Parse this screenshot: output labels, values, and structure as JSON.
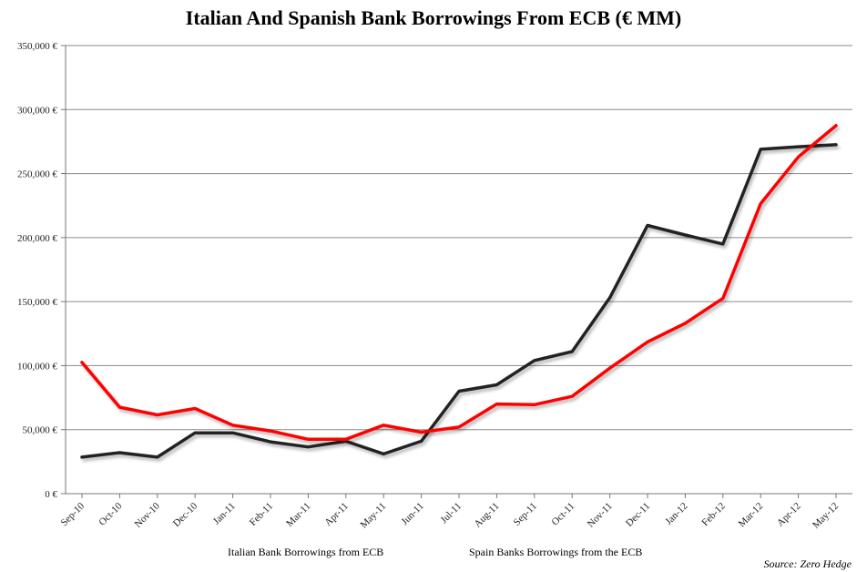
{
  "chart_data": {
    "type": "line",
    "title": "Italian And Spanish Bank Borrowings From ECB (€ MM)",
    "source": "Source: Zero Hedge",
    "ylim": [
      0,
      350000
    ],
    "yticks": [
      0,
      50000,
      100000,
      150000,
      200000,
      250000,
      300000,
      350000
    ],
    "ytick_labels": [
      "0 €",
      "50,000 €",
      "100,000 €",
      "150,000 €",
      "200,000 €",
      "250,000 €",
      "300,000 €",
      "350,000 €"
    ],
    "grid": true,
    "legend_position": "bottom",
    "categories": [
      "Sep-10",
      "Oct-10",
      "Nov-10",
      "Dec-10",
      "Jan-11",
      "Feb-11",
      "Mar-11",
      "Apr-11",
      "May-11",
      "Jun-11",
      "Jul-11",
      "Aug-11",
      "Sep-11",
      "Oct-11",
      "Nov-11",
      "Dec-11",
      "Jan-12",
      "Feb-12",
      "Mar-12",
      "Apr-12",
      "May-12"
    ],
    "series": [
      {
        "name": "Italian Bank Borrowings from ECB",
        "color": "#222222",
        "values": [
          28500,
          32000,
          28500,
          47500,
          47500,
          40500,
          36500,
          41000,
          31000,
          41000,
          80000,
          85000,
          104000,
          111000,
          153000,
          209500,
          202000,
          195000,
          269000,
          271000,
          272500
        ]
      },
      {
        "name": "Spain Banks Borrowings from the ECB",
        "color": "#ff0000",
        "values": [
          102500,
          67500,
          61500,
          66500,
          53500,
          49000,
          42500,
          42500,
          53500,
          48000,
          52000,
          70000,
          69500,
          76000,
          98000,
          118500,
          133000,
          152500,
          226500,
          263000,
          287500
        ]
      }
    ]
  }
}
